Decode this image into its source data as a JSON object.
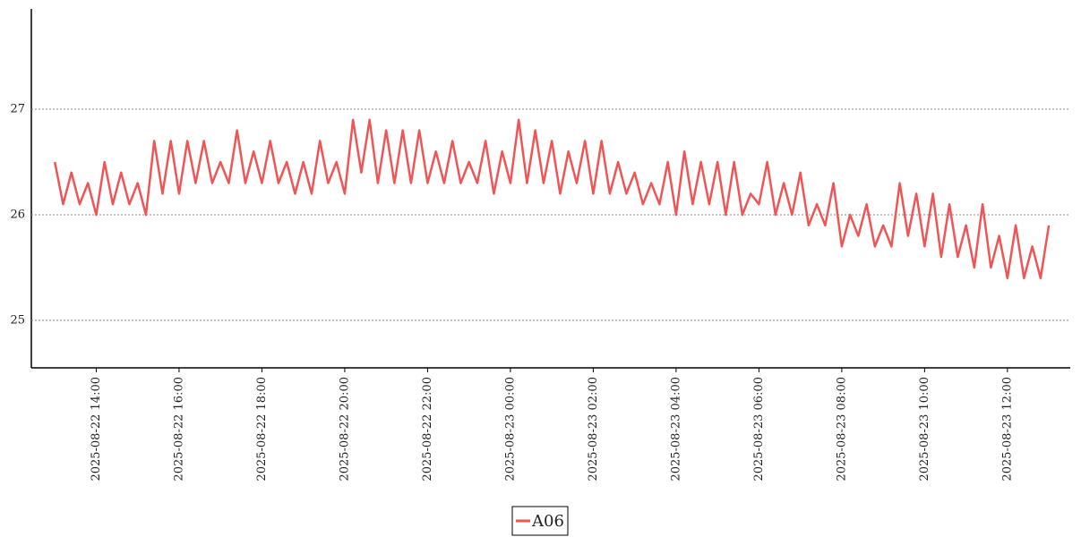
{
  "chart_data": {
    "type": "line",
    "x": [
      "2025-08-22 13:00",
      "2025-08-22 13:12",
      "2025-08-22 13:24",
      "2025-08-22 13:36",
      "2025-08-22 13:48",
      "2025-08-22 14:00",
      "2025-08-22 14:12",
      "2025-08-22 14:24",
      "2025-08-22 14:36",
      "2025-08-22 14:48",
      "2025-08-22 15:00",
      "2025-08-22 15:12",
      "2025-08-22 15:24",
      "2025-08-22 15:36",
      "2025-08-22 15:48",
      "2025-08-22 16:00",
      "2025-08-22 16:12",
      "2025-08-22 16:24",
      "2025-08-22 16:36",
      "2025-08-22 16:48",
      "2025-08-22 17:00",
      "2025-08-22 17:12",
      "2025-08-22 17:24",
      "2025-08-22 17:36",
      "2025-08-22 17:48",
      "2025-08-22 18:00",
      "2025-08-22 18:12",
      "2025-08-22 18:24",
      "2025-08-22 18:36",
      "2025-08-22 18:48",
      "2025-08-22 19:00",
      "2025-08-22 19:12",
      "2025-08-22 19:24",
      "2025-08-22 19:36",
      "2025-08-22 19:48",
      "2025-08-22 20:00",
      "2025-08-22 20:12",
      "2025-08-22 20:24",
      "2025-08-22 20:36",
      "2025-08-22 20:48",
      "2025-08-22 21:00",
      "2025-08-22 21:12",
      "2025-08-22 21:24",
      "2025-08-22 21:36",
      "2025-08-22 21:48",
      "2025-08-22 22:00",
      "2025-08-22 22:12",
      "2025-08-22 22:24",
      "2025-08-22 22:36",
      "2025-08-22 22:48",
      "2025-08-22 23:00",
      "2025-08-22 23:12",
      "2025-08-22 23:24",
      "2025-08-22 23:36",
      "2025-08-22 23:48",
      "2025-08-23 00:00",
      "2025-08-23 00:12",
      "2025-08-23 00:24",
      "2025-08-23 00:36",
      "2025-08-23 00:48",
      "2025-08-23 01:00",
      "2025-08-23 01:12",
      "2025-08-23 01:24",
      "2025-08-23 01:36",
      "2025-08-23 01:48",
      "2025-08-23 02:00",
      "2025-08-23 02:12",
      "2025-08-23 02:24",
      "2025-08-23 02:36",
      "2025-08-23 02:48",
      "2025-08-23 03:00",
      "2025-08-23 03:12",
      "2025-08-23 03:24",
      "2025-08-23 03:36",
      "2025-08-23 03:48",
      "2025-08-23 04:00",
      "2025-08-23 04:12",
      "2025-08-23 04:24",
      "2025-08-23 04:36",
      "2025-08-23 04:48",
      "2025-08-23 05:00",
      "2025-08-23 05:12",
      "2025-08-23 05:24",
      "2025-08-23 05:36",
      "2025-08-23 05:48",
      "2025-08-23 06:00",
      "2025-08-23 06:12",
      "2025-08-23 06:24",
      "2025-08-23 06:36",
      "2025-08-23 06:48",
      "2025-08-23 07:00",
      "2025-08-23 07:12",
      "2025-08-23 07:24",
      "2025-08-23 07:36",
      "2025-08-23 07:48",
      "2025-08-23 08:00",
      "2025-08-23 08:12",
      "2025-08-23 08:24",
      "2025-08-23 08:36",
      "2025-08-23 08:48",
      "2025-08-23 09:00",
      "2025-08-23 09:12",
      "2025-08-23 09:24",
      "2025-08-23 09:36",
      "2025-08-23 09:48",
      "2025-08-23 10:00",
      "2025-08-23 10:12",
      "2025-08-23 10:24",
      "2025-08-23 10:36",
      "2025-08-23 10:48",
      "2025-08-23 11:00",
      "2025-08-23 11:12",
      "2025-08-23 11:24",
      "2025-08-23 11:36",
      "2025-08-23 11:48",
      "2025-08-23 12:00",
      "2025-08-23 12:12",
      "2025-08-23 12:24",
      "2025-08-23 12:36",
      "2025-08-23 12:48",
      "2025-08-23 13:00"
    ],
    "series": [
      {
        "name": "A06",
        "color": "#f05555",
        "values": [
          26.5,
          26.1,
          26.4,
          26.1,
          26.3,
          26.0,
          26.5,
          26.1,
          26.4,
          26.1,
          26.3,
          26.0,
          26.7,
          26.2,
          26.7,
          26.2,
          26.7,
          26.3,
          26.7,
          26.3,
          26.5,
          26.3,
          26.8,
          26.3,
          26.6,
          26.3,
          26.7,
          26.3,
          26.5,
          26.2,
          26.5,
          26.2,
          26.7,
          26.3,
          26.5,
          26.2,
          26.9,
          26.4,
          26.9,
          26.3,
          26.8,
          26.3,
          26.8,
          26.3,
          26.8,
          26.3,
          26.6,
          26.3,
          26.7,
          26.3,
          26.5,
          26.3,
          26.7,
          26.2,
          26.6,
          26.3,
          26.9,
          26.3,
          26.8,
          26.3,
          26.7,
          26.2,
          26.6,
          26.3,
          26.7,
          26.2,
          26.7,
          26.2,
          26.5,
          26.2,
          26.4,
          26.1,
          26.3,
          26.1,
          26.5,
          26.0,
          26.6,
          26.1,
          26.5,
          26.1,
          26.5,
          26.0,
          26.5,
          26.0,
          26.2,
          26.1,
          26.5,
          26.0,
          26.3,
          26.0,
          26.4,
          25.9,
          26.1,
          25.9,
          26.3,
          25.7,
          26.0,
          25.8,
          26.1,
          25.7,
          25.9,
          25.7,
          26.3,
          25.8,
          26.2,
          25.7,
          26.2,
          25.6,
          26.1,
          25.6,
          25.9,
          25.5,
          26.1,
          25.5,
          25.8,
          25.4,
          25.9,
          25.4,
          25.7,
          25.4,
          25.9
        ]
      }
    ],
    "xlim": [
      "2025-08-22 12:26",
      "2025-08-23 13:31"
    ],
    "xticks": [
      "2025-08-22 14:00",
      "2025-08-22 16:00",
      "2025-08-22 18:00",
      "2025-08-22 20:00",
      "2025-08-22 22:00",
      "2025-08-23 00:00",
      "2025-08-23 02:00",
      "2025-08-23 04:00",
      "2025-08-23 06:00",
      "2025-08-23 08:00",
      "2025-08-23 10:00",
      "2025-08-23 12:00"
    ],
    "ylim": [
      24.55,
      27.95
    ],
    "yticks": [
      25,
      26,
      27
    ],
    "grid": true,
    "legend": "bottom"
  }
}
